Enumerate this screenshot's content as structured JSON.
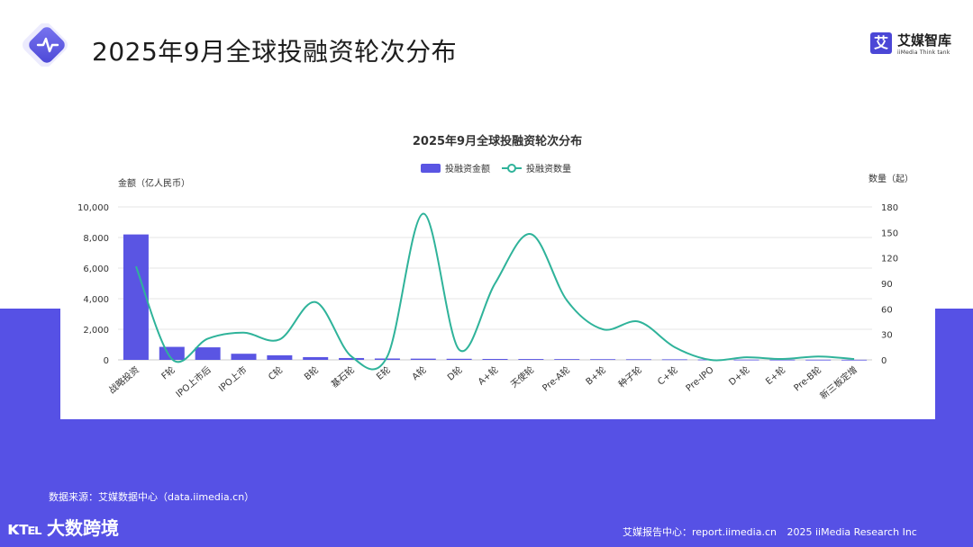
{
  "page": {
    "title": "2025年9月全球投融资轮次分布",
    "brand_name": "艾媒智库",
    "brand_sub": "iiMedia Think tank",
    "brand_mark": "艾",
    "source_note": "数据来源：艾媒数据中心（data.iimedia.cn）",
    "footer_logo_icon": "ᴋ℡",
    "footer_logo_text": "大数跨境",
    "footer_report": "艾媒报告中心：report.iimedia.cn",
    "footer_copyright": "2025 iiMedia Research Inc"
  },
  "colors": {
    "accent": "#5651e5",
    "bar": "#5a55e3",
    "line": "#2fb39a",
    "grid": "#e6e6e6",
    "text": "#333333"
  },
  "chart_data": {
    "type": "bar",
    "title": "2025年9月全球投融资轮次分布",
    "legend_position": "top",
    "grid": true,
    "left_axis_label": "金额（亿人民币）",
    "right_axis_label": "数量（起）",
    "left_ticks": [
      "0",
      "2,000",
      "4,000",
      "6,000",
      "8,000",
      "10,000"
    ],
    "right_ticks": [
      "0",
      "30",
      "60",
      "90",
      "120",
      "150",
      "180"
    ],
    "ylim_left": [
      0,
      10000
    ],
    "ylim_right": [
      0,
      180
    ],
    "categories": [
      "战略投资",
      "F轮",
      "IPO上市后",
      "IPO上市",
      "C轮",
      "B轮",
      "基石轮",
      "E轮",
      "A轮",
      "D轮",
      "A+轮",
      "天使轮",
      "Pre-A轮",
      "B+轮",
      "种子轮",
      "C+轮",
      "Pre-IPO",
      "D+轮",
      "E+轮",
      "Pre-B轮",
      "新三板定增"
    ],
    "series": [
      {
        "name": "投融资金额",
        "kind": "bar",
        "axis": "left",
        "values": [
          8200,
          850,
          820,
          400,
          300,
          180,
          120,
          90,
          80,
          70,
          60,
          55,
          50,
          45,
          40,
          35,
          20,
          15,
          12,
          10,
          8
        ]
      },
      {
        "name": "投融资数量",
        "kind": "line",
        "axis": "right",
        "values": [
          110,
          1,
          25,
          32,
          24,
          68,
          4,
          4,
          172,
          12,
          90,
          148,
          70,
          36,
          45,
          15,
          0,
          3,
          1,
          4,
          1
        ]
      }
    ]
  }
}
